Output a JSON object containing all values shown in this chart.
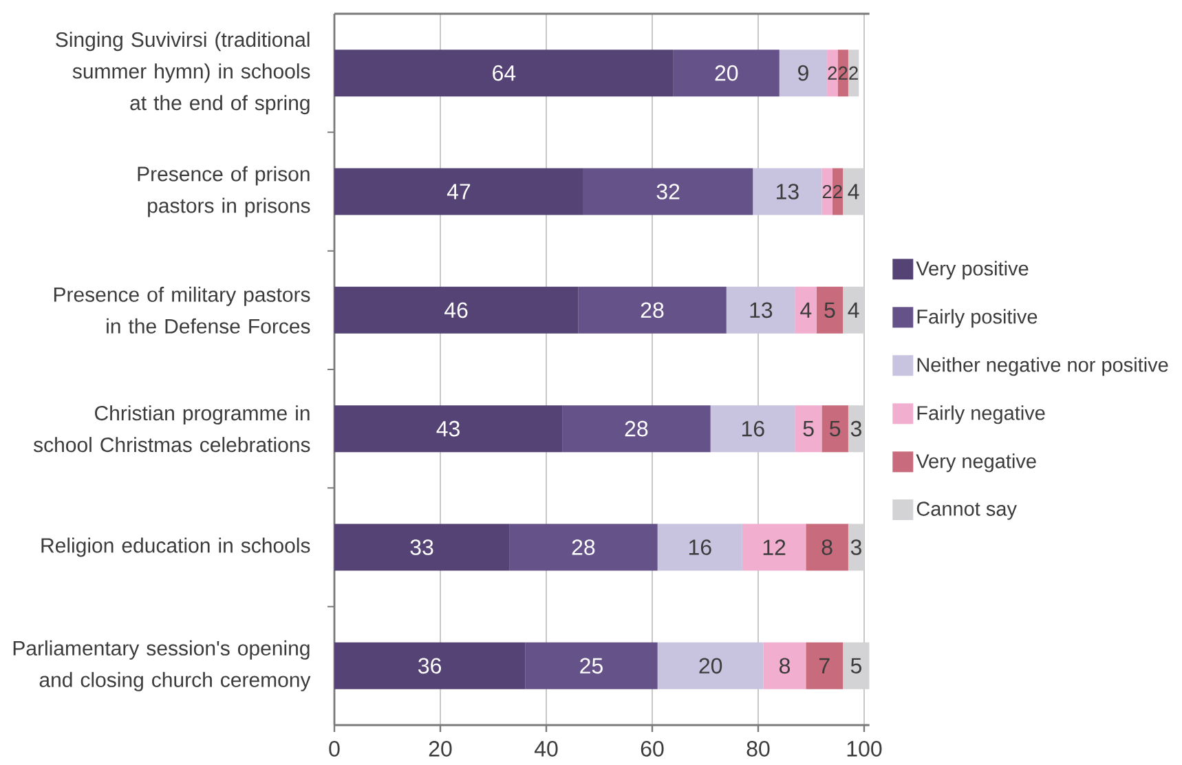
{
  "chart_data": {
    "type": "bar",
    "orientation": "horizontal",
    "stacked": true,
    "categories": [
      "Singing Suvivirsi (traditional summer hymn) in schools at the end of spring",
      "Presence of prison pastors in prisons",
      "Presence of military pastors in the Defense Forces",
      "Christian programme in school Christmas celebrations",
      "Religion education in schools",
      "Parliamentary session's opening and closing church ceremony"
    ],
    "series": [
      {
        "name": "Very positive",
        "color": "#544374",
        "values": [
          64,
          47,
          46,
          43,
          33,
          36
        ]
      },
      {
        "name": "Fairly positive",
        "color": "#655289",
        "values": [
          20,
          32,
          28,
          28,
          28,
          25
        ]
      },
      {
        "name": "Neither negative nor positive",
        "color": "#c8c4e0",
        "values": [
          9,
          13,
          13,
          16,
          16,
          20
        ]
      },
      {
        "name": "Fairly negative",
        "color": "#f2aecf",
        "values": [
          2,
          2,
          4,
          5,
          12,
          8
        ]
      },
      {
        "name": "Very negative",
        "color": "#c86b7c",
        "values": [
          2,
          2,
          5,
          5,
          8,
          7
        ]
      },
      {
        "name": "Cannot say",
        "color": "#d3d3d5",
        "values": [
          2,
          4,
          4,
          3,
          3,
          5
        ]
      }
    ],
    "xlim": [
      0,
      101
    ],
    "xticks": [
      0,
      20,
      40,
      60,
      80,
      100
    ],
    "grid": "x",
    "legend": "right",
    "data_labels": true
  }
}
